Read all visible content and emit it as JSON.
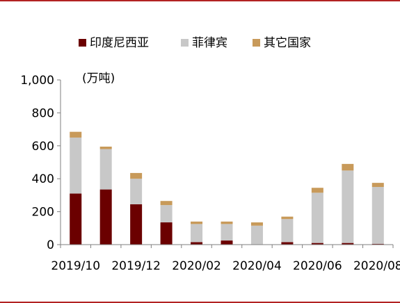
{
  "frame_color": "#B22222",
  "chart_data": {
    "type": "bar",
    "stacked": true,
    "unit_label": "(万吨)",
    "categories": [
      "2019/10",
      "2019/11",
      "2019/12",
      "2020/01",
      "2020/02",
      "2020/03",
      "2020/04",
      "2020/05",
      "2020/06",
      "2020/07",
      "2020/08"
    ],
    "x_tick_labels": [
      "2019/10",
      "2019/12",
      "2020/02",
      "2020/04",
      "2020/06",
      "2020/08"
    ],
    "y_ticks": [
      "0",
      "200",
      "400",
      "600",
      "800",
      "1,000"
    ],
    "ylim": [
      0,
      1000
    ],
    "legend_position": "top",
    "series": [
      {
        "name": "印度尼西亚",
        "color": "#6B0000",
        "values": [
          310,
          335,
          245,
          135,
          15,
          25,
          0,
          15,
          10,
          10,
          5
        ]
      },
      {
        "name": "菲律宾",
        "color": "#C8C8C8",
        "values": [
          340,
          245,
          155,
          105,
          110,
          100,
          115,
          140,
          305,
          440,
          345
        ]
      },
      {
        "name": "其它国家",
        "color": "#C89A5A",
        "values": [
          35,
          15,
          35,
          25,
          15,
          15,
          20,
          15,
          30,
          40,
          25
        ]
      }
    ]
  }
}
